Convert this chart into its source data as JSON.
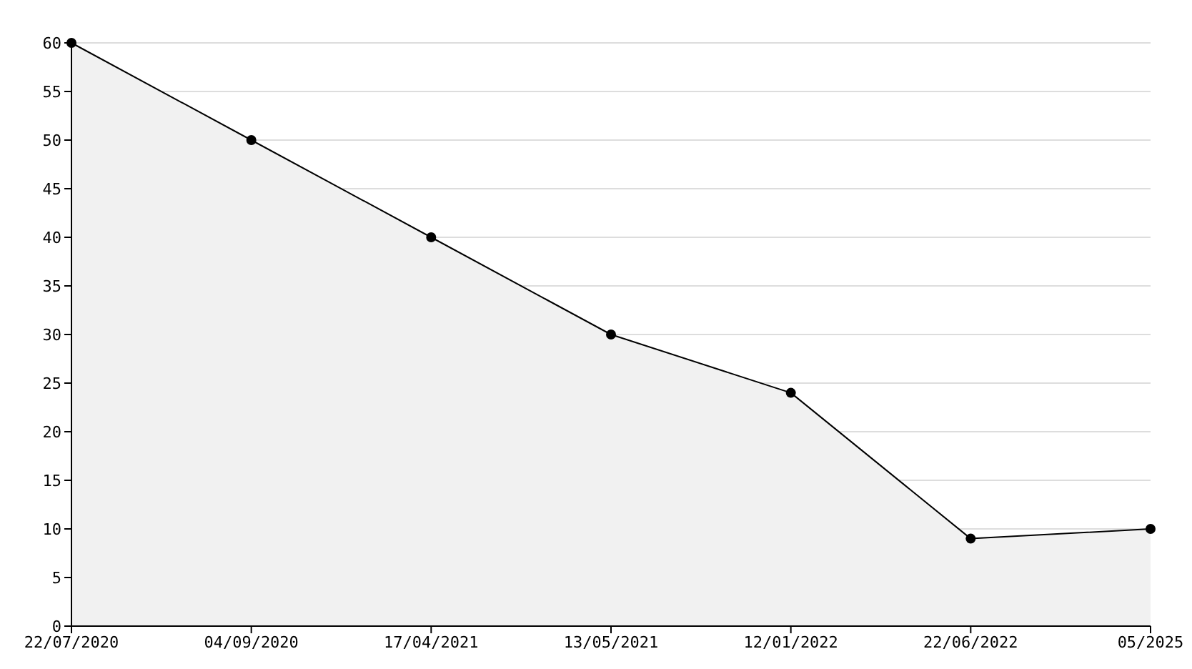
{
  "chart_data": {
    "type": "area",
    "categories": [
      "22/07/2020",
      "04/09/2020",
      "17/04/2021",
      "13/05/2021",
      "12/01/2022",
      "22/06/2022",
      "05/2025"
    ],
    "series": [
      {
        "color": "#000000",
        "values": [
          60,
          50,
          40,
          30,
          24,
          9,
          10
        ]
      }
    ],
    "ylim": [
      0,
      60
    ],
    "yticks": [
      0,
      5,
      10,
      15,
      20,
      25,
      30,
      35,
      40,
      45,
      50,
      55,
      60
    ],
    "grid": "y",
    "marker": "circle",
    "line_style": "solid"
  }
}
